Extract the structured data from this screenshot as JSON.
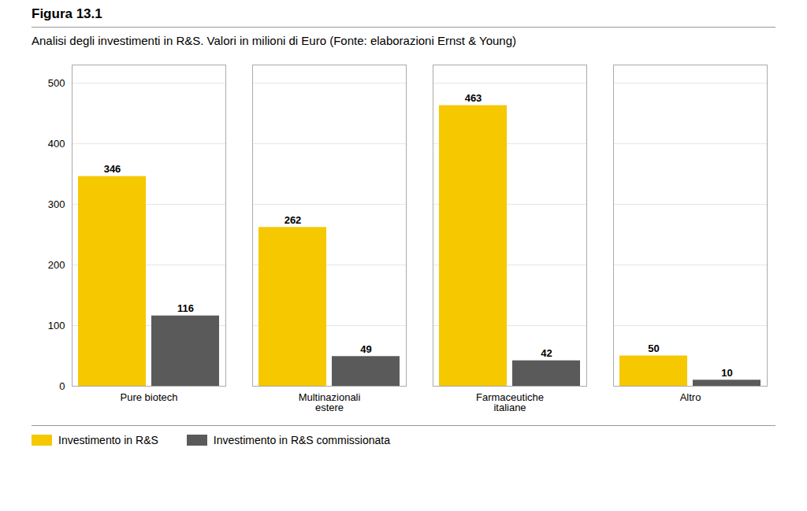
{
  "chart_data": {
    "type": "bar",
    "title": "Figura 13.1",
    "subtitle": "Analisi degli investimenti in R&S. Valori in milioni di Euro (Fonte: elaborazioni Ernst & Young)",
    "categories": [
      "Pure biotech",
      "Multinazionali\nestere",
      "Farmaceutiche\nitaliane",
      "Altro"
    ],
    "series": [
      {
        "name": "Investimento in R&S",
        "color": "#F5C800",
        "values": [
          346,
          262,
          463,
          50
        ]
      },
      {
        "name": "Investimento in R&S commissionata",
        "color": "#5A5A5A",
        "values": [
          116,
          49,
          42,
          10
        ]
      }
    ],
    "ylim": [
      0,
      530
    ],
    "yticks": [
      0,
      100,
      200,
      300,
      400,
      500
    ],
    "grid": true,
    "legend": "bottom",
    "data_labels": true
  }
}
